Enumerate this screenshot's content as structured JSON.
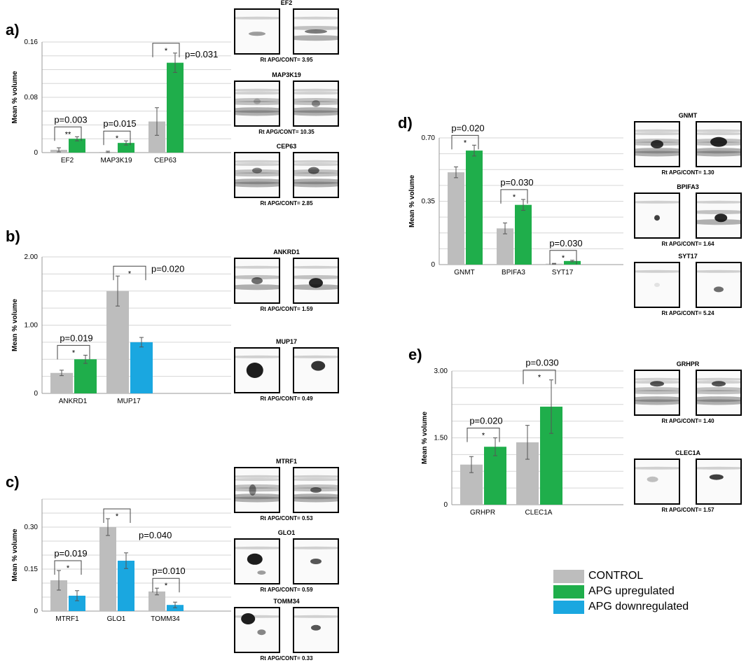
{
  "colors": {
    "control": "#bdbdbd",
    "up": "#1fae4b",
    "down": "#1aa7e0",
    "grid": "#d6d6d6",
    "axis": "#999999"
  },
  "legend": [
    {
      "key": "control",
      "label": "CONTROL"
    },
    {
      "key": "up",
      "label": "APG upregulated"
    },
    {
      "key": "down",
      "label": "APG downregulated"
    }
  ],
  "chart_data": [
    {
      "panel": "a)",
      "type": "bar",
      "ylabel": "Mean % volume",
      "ylim": [
        0,
        0.16
      ],
      "ticks": [
        "0",
        "0.08",
        "0.16"
      ],
      "tick_values": [
        0,
        0.08,
        0.16
      ],
      "grid": true,
      "categories": [
        "EF2",
        "MAP3K19",
        "CEP63"
      ],
      "series": [
        {
          "key": "control",
          "values": [
            0.004,
            0.001,
            0.045
          ],
          "errors": [
            0.003,
            0.001,
            0.02
          ]
        },
        {
          "key": "up",
          "values": [
            0.02,
            0.014,
            0.13
          ],
          "errors": [
            0.003,
            0.003,
            0.014
          ]
        }
      ],
      "annotations": [
        {
          "p": "p=0.003",
          "star": "**"
        },
        {
          "p": "p=0.015",
          "star": "*"
        },
        {
          "p": "p=0.031",
          "star": "*"
        }
      ]
    },
    {
      "panel": "b)",
      "type": "bar",
      "ylabel": "Mean % volume",
      "ylim": [
        0,
        2.0
      ],
      "ticks": [
        "0",
        "1.00",
        "2.00"
      ],
      "tick_values": [
        0,
        1.0,
        2.0
      ],
      "grid": true,
      "categories": [
        "ANKRD1",
        "MUP17"
      ],
      "series": [
        {
          "key": "control",
          "values": [
            0.3,
            1.5
          ],
          "errors": [
            0.04,
            0.22
          ]
        },
        {
          "key": "second",
          "values": [
            0.5,
            0.75
          ],
          "colors": [
            "up",
            "down"
          ],
          "errors": [
            0.06,
            0.07
          ]
        }
      ],
      "annotations": [
        {
          "p": "p=0.019",
          "star": "*"
        },
        {
          "p": "p=0.020",
          "star": "*"
        }
      ]
    },
    {
      "panel": "c)",
      "type": "bar",
      "ylabel": "Mean % volume",
      "ylim": [
        0,
        0.4
      ],
      "ticks": [
        "0",
        "0.15",
        "0.30"
      ],
      "tick_values": [
        0,
        0.15,
        0.3
      ],
      "grid": true,
      "categories": [
        "MTRF1",
        "GLO1",
        "TOMM34"
      ],
      "series": [
        {
          "key": "control",
          "values": [
            0.11,
            0.3,
            0.07
          ],
          "errors": [
            0.035,
            0.03,
            0.012
          ]
        },
        {
          "key": "down",
          "values": [
            0.055,
            0.18,
            0.022
          ],
          "errors": [
            0.018,
            0.028,
            0.01
          ]
        }
      ],
      "annotations": [
        {
          "p": "p=0.019",
          "star": "*"
        },
        {
          "p": "p=0.040",
          "star": "*"
        },
        {
          "p": "p=0.010",
          "star": "*"
        }
      ]
    },
    {
      "panel": "d)",
      "type": "bar",
      "ylabel": "Mean % volume",
      "ylim": [
        0,
        0.7
      ],
      "ticks": [
        "0",
        "0.35",
        "0.70"
      ],
      "tick_values": [
        0,
        0.35,
        0.7
      ],
      "grid": true,
      "categories": [
        "GNMT",
        "BPIFA3",
        "SYT17"
      ],
      "series": [
        {
          "key": "control",
          "values": [
            0.51,
            0.2,
            0.005
          ],
          "errors": [
            0.03,
            0.03,
            0.002
          ]
        },
        {
          "key": "up",
          "values": [
            0.63,
            0.33,
            0.02
          ],
          "errors": [
            0.03,
            0.03,
            0.004
          ]
        }
      ],
      "annotations": [
        {
          "p": "p=0.020",
          "star": "*"
        },
        {
          "p": "p=0.030",
          "star": "*"
        },
        {
          "p": "p=0.030",
          "star": "*"
        }
      ]
    },
    {
      "panel": "e)",
      "type": "bar",
      "ylabel": "Mean % volume",
      "ylim": [
        0,
        3.0
      ],
      "ticks": [
        "0",
        "1.50",
        "3.00"
      ],
      "tick_values": [
        0,
        1.5,
        3.0
      ],
      "grid": true,
      "categories": [
        "GRHPR",
        "CLEC1A"
      ],
      "series": [
        {
          "key": "control",
          "values": [
            0.9,
            1.4
          ],
          "errors": [
            0.18,
            0.38
          ]
        },
        {
          "key": "up",
          "values": [
            1.3,
            2.2
          ],
          "errors": [
            0.2,
            0.6
          ]
        }
      ],
      "annotations": [
        {
          "p": "p=0.020",
          "star": "*"
        },
        {
          "p": "p=0.030",
          "star": "*"
        }
      ]
    }
  ],
  "blots": {
    "a": [
      {
        "name": "EF2",
        "ratio": "Rt  APG/CONT= 3.95"
      },
      {
        "name": "MAP3K19",
        "ratio": "Rt  APG/CONT= 10.35"
      },
      {
        "name": "CEP63",
        "ratio": "Rt  APG/CONT= 2.85"
      }
    ],
    "b": [
      {
        "name": "ANKRD1",
        "ratio": "Rt  APG/CONT= 1.59"
      },
      {
        "name": "MUP17",
        "ratio": "Rt  APG/CONT= 0.49"
      }
    ],
    "c": [
      {
        "name": "MTRF1",
        "ratio": "Rt  APG/CONT= 0.53"
      },
      {
        "name": "GLO1",
        "ratio": "Rt  APG/CONT= 0.59"
      },
      {
        "name": "TOMM34",
        "ratio": "Rt  APG/CONT= 0.33"
      }
    ],
    "d": [
      {
        "name": "GNMT",
        "ratio": "Rt  APG/CONT= 1.30"
      },
      {
        "name": "BPIFA3",
        "ratio": "Rt  APG/CONT= 1.64"
      },
      {
        "name": "SYT17",
        "ratio": "Rt  APG/CONT= 5.24"
      }
    ],
    "e": [
      {
        "name": "GRHPR",
        "ratio": "Rt  APG/CONT= 1.40"
      },
      {
        "name": "CLEC1A",
        "ratio": "Rt  APG/CONT= 1.57"
      }
    ]
  }
}
